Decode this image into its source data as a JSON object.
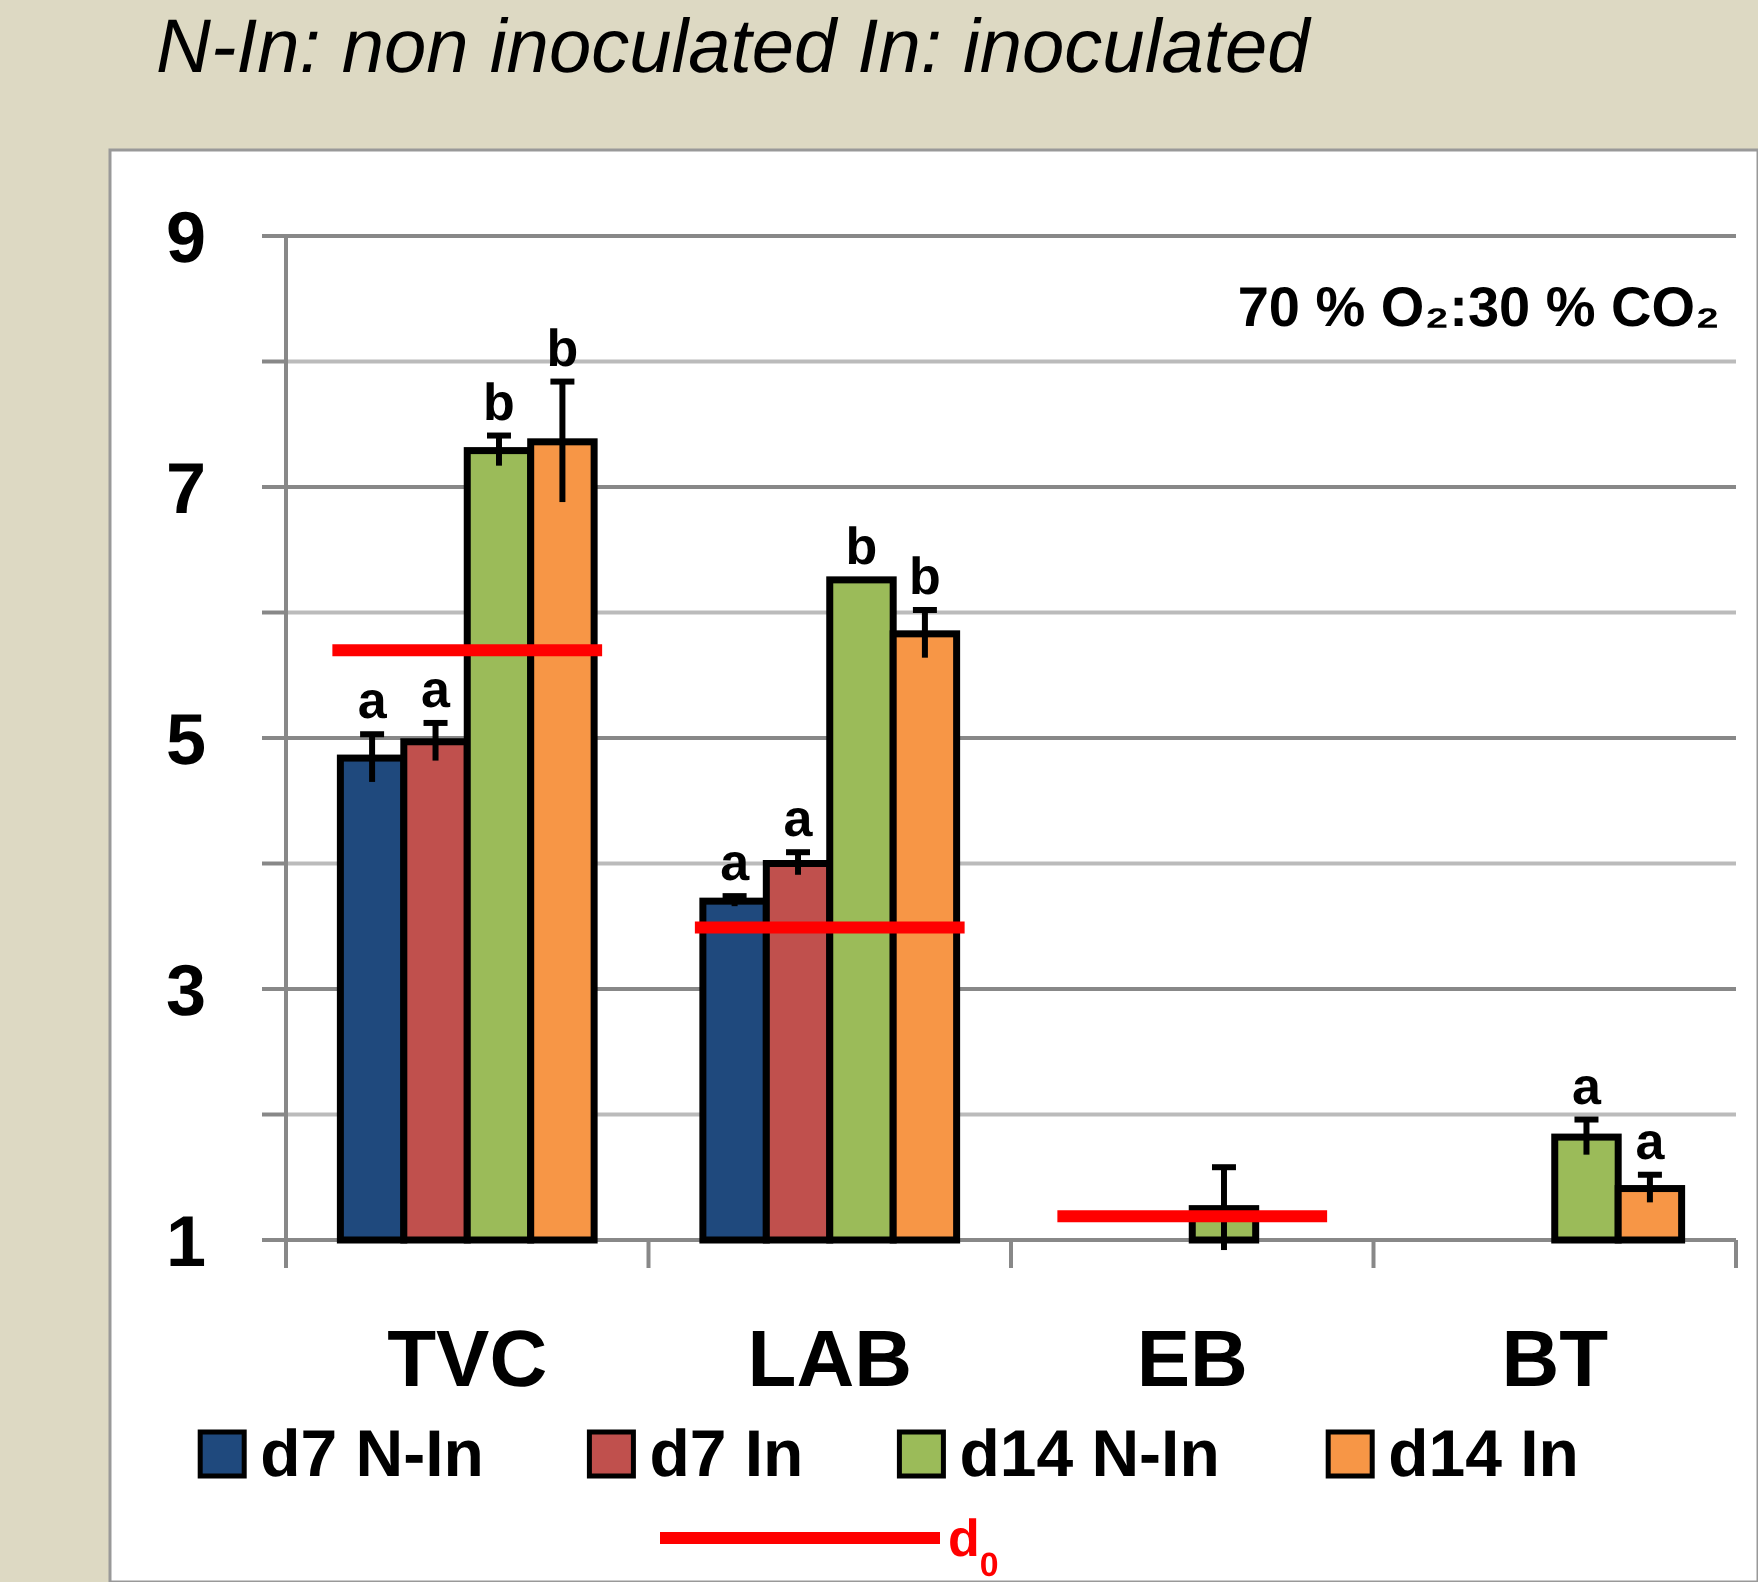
{
  "chart_data": {
    "type": "bar",
    "title": "N-In: non inoculated In: inoculated",
    "categories": [
      "TVC",
      "LAB",
      "EB",
      "BT"
    ],
    "ylim": [
      1,
      9
    ],
    "yticks": [
      1,
      {
        "value": 2,
        "label": null
      },
      3,
      {
        "value": 4,
        "label": null
      },
      5,
      {
        "value": 6,
        "label": null
      },
      7,
      {
        "value": 8,
        "label": null
      },
      9
    ],
    "grid": "y",
    "legend": "bottom",
    "annotations": [
      "70 % O₂:30 % CO₂"
    ],
    "series": [
      {
        "name": "d7 N-In",
        "color": "#1f497d",
        "values": [
          4.84,
          3.7,
          1,
          1
        ],
        "errors": [
          0.19,
          0.04,
          null,
          null
        ],
        "value_labels": [
          "a",
          "a",
          null,
          null
        ]
      },
      {
        "name": "d7 In",
        "color": "#c0504d",
        "values": [
          4.97,
          4.0,
          1,
          1
        ],
        "errors": [
          0.15,
          0.09,
          null,
          null
        ],
        "value_labels": [
          "a",
          "a",
          null,
          null
        ]
      },
      {
        "name": "d14 N-In",
        "color": "#9bbb59",
        "values": [
          7.29,
          6.26,
          1.25,
          1.82
        ],
        "errors": [
          0.12,
          null,
          0.33,
          0.14
        ],
        "value_labels": [
          "b",
          "b",
          null,
          "a"
        ]
      },
      {
        "name": "d14 In",
        "color": "#f79646",
        "values": [
          7.36,
          5.83,
          1,
          1.41
        ],
        "errors": [
          0.48,
          0.19,
          null,
          0.11
        ],
        "value_labels": [
          "b",
          "b",
          null,
          "a"
        ]
      }
    ],
    "ref_lines": [
      {
        "axis": "y",
        "value": 5.7,
        "label": "d$_{0}$",
        "color": "#ff0000"
      },
      {
        "axis": "y",
        "value": 3.49,
        "color": "#ff0000"
      },
      {
        "axis": "y",
        "value": 1.19,
        "color": "#ff0000"
      }
    ]
  }
}
